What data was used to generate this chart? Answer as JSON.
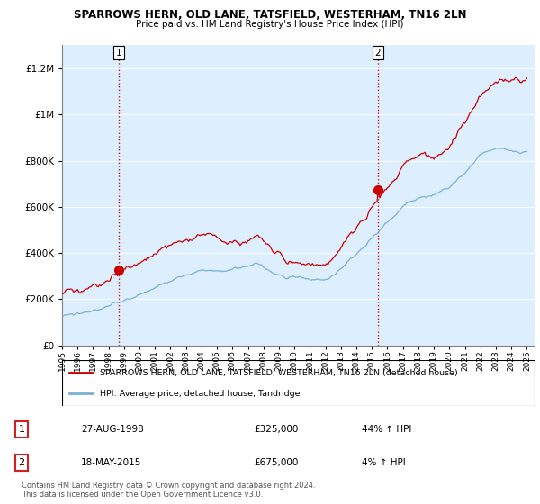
{
  "title": "SPARROWS HERN, OLD LANE, TATSFIELD, WESTERHAM, TN16 2LN",
  "subtitle": "Price paid vs. HM Land Registry's House Price Index (HPI)",
  "sale1_date": "27-AUG-1998",
  "sale1_price": 325000,
  "sale1_label": "44% ↑ HPI",
  "sale2_date": "18-MAY-2015",
  "sale2_price": 675000,
  "sale2_label": "4% ↑ HPI",
  "legend_line1": "SPARROWS HERN, OLD LANE, TATSFIELD, WESTERHAM, TN16 2LN (detached house)",
  "legend_line2": "HPI: Average price, detached house, Tandridge",
  "footer1": "Contains HM Land Registry data © Crown copyright and database right 2024.",
  "footer2": "This data is licensed under the Open Government Licence v3.0.",
  "property_color": "#cc0000",
  "hpi_color": "#7ab0d4",
  "bg_color": "#ddeeff",
  "sale_dot_color": "#cc0000",
  "vline_color": "#cc0000",
  "yticks": [
    0,
    200000,
    400000,
    600000,
    800000,
    1000000,
    1200000
  ],
  "ylim": [
    0,
    1300000
  ],
  "xlim_start": 1995.0,
  "xlim_end": 2025.5,
  "t1": 1998.65,
  "t2": 2015.38
}
